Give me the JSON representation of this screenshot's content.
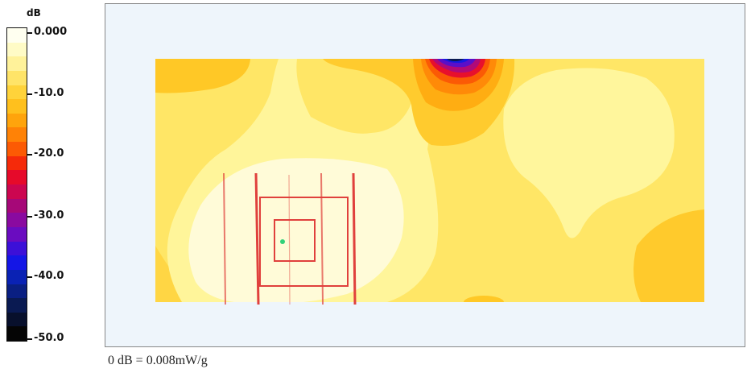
{
  "chart_data": {
    "type": "heatmap",
    "colorbar": {
      "unit_label": "dB",
      "tick_labels": [
        "0.000",
        "-10.0",
        "-20.0",
        "-30.0",
        "-40.0",
        "-50.0"
      ],
      "range": [
        -50,
        0
      ],
      "bands": [
        "#fffff0",
        "#fffbc6",
        "#fff29a",
        "#ffe468",
        "#ffd33a",
        "#ffc01d",
        "#ffa40c",
        "#ff8206",
        "#fc5a04",
        "#f52a0a",
        "#e60a2a",
        "#cc0650",
        "#a60878",
        "#8a0aa0",
        "#6a0cc0",
        "#3c10d8",
        "#1416e6",
        "#0a22b4",
        "#0a1f82",
        "#0a1a52",
        "#08102c",
        "#050505"
      ]
    },
    "colors": {
      "background": "#eef5fb",
      "measurement_grid": "#e0403c",
      "peak_marker": "#32d17a"
    }
  },
  "footer": {
    "note": "0 dB = 0.008mW/g"
  }
}
